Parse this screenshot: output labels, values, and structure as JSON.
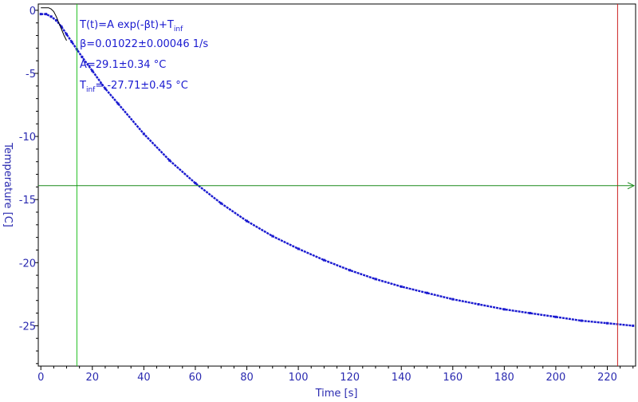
{
  "chart_data": {
    "type": "line",
    "xlabel": "Time [s]",
    "ylabel": "Temperature [C]",
    "xlim": [
      -1,
      231
    ],
    "ylim": [
      -28.2,
      0.5
    ],
    "x_ticks": [
      0,
      20,
      40,
      60,
      80,
      100,
      120,
      140,
      160,
      180,
      200,
      220
    ],
    "y_ticks": [
      0,
      -5,
      -10,
      -15,
      -20,
      -25
    ],
    "grid": false,
    "model": "T(t)=A exp(-βt)+T_inf",
    "fit_parameters": {
      "beta": 0.01022,
      "beta_err": 0.00046,
      "beta_unit": "1/s",
      "A": 29.1,
      "A_err": 0.34,
      "A_unit": "°C",
      "T_inf": -27.71,
      "T_inf_err": 0.45,
      "T_inf_unit": "°C"
    },
    "annotations": {
      "line1_main": "T(t)=A exp(-βt)+T",
      "line1_sub": "inf",
      "line2": "β=0.01022±0.00046 1/s",
      "line3": "A=29.1±0.34 °C",
      "line4_main": "T",
      "line4_sub": "inf",
      "line4_rest": "= -27.71±0.45 °C"
    },
    "cursor_x1": 14,
    "cursor_x2": 224,
    "cursor_y": -13.9,
    "series": [
      {
        "role": "measured",
        "x": [
          0,
          2,
          4,
          6,
          8,
          10,
          12,
          14,
          16,
          20,
          25,
          30,
          40,
          50,
          60,
          70,
          80,
          90,
          100,
          110,
          120,
          130,
          140,
          150,
          160,
          170,
          180,
          190,
          200,
          210,
          220,
          230
        ],
        "y": [
          -0.3,
          -0.3,
          -0.5,
          -0.8,
          -1.3,
          -1.9,
          -2.5,
          -3.1,
          -3.7,
          -4.8,
          -6.2,
          -7.4,
          -9.8,
          -11.9,
          -13.7,
          -15.3,
          -16.7,
          -17.9,
          -18.9,
          -19.8,
          -20.6,
          -21.3,
          -21.9,
          -22.4,
          -22.9,
          -23.3,
          -23.7,
          -24.0,
          -24.3,
          -24.6,
          -24.8,
          -25.0
        ],
        "color": "#1a1ad0"
      },
      {
        "role": "fit",
        "x": [
          0,
          1,
          2,
          3,
          4,
          5,
          6,
          7,
          8,
          9,
          10
        ],
        "y": [
          0.2,
          0.2,
          0.2,
          0.2,
          0.1,
          -0.1,
          -0.5,
          -1.0,
          -1.5,
          -2.0,
          -2.4
        ],
        "color": "#000000"
      }
    ],
    "colors": {
      "axis": "#000000",
      "tick_text": "#2a2ab0",
      "annotation_text": "#1a1ad0",
      "cursor_x1": "#22c022",
      "cursor_x2": "#cc2222",
      "cursor_y": "#1a8a1a"
    }
  }
}
